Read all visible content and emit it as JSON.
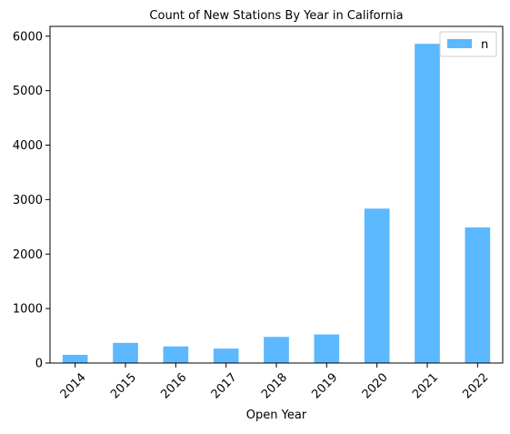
{
  "chart_data": {
    "type": "bar",
    "title": "Count of New Stations By Year in California",
    "xlabel": "Open Year",
    "ylabel": "",
    "categories": [
      "2014",
      "2015",
      "2016",
      "2017",
      "2018",
      "2019",
      "2020",
      "2021",
      "2022"
    ],
    "series": [
      {
        "name": "n",
        "values": [
          150,
          370,
          305,
          265,
          480,
          525,
          2835,
          5860,
          2490
        ],
        "color": "#5cb8ff"
      }
    ],
    "ylim": [
      0,
      6180
    ],
    "yticks": [
      0,
      1000,
      2000,
      3000,
      4000,
      5000,
      6000
    ],
    "grid": false,
    "legend_position": "top-right",
    "xtick_rotation_deg": 45
  }
}
